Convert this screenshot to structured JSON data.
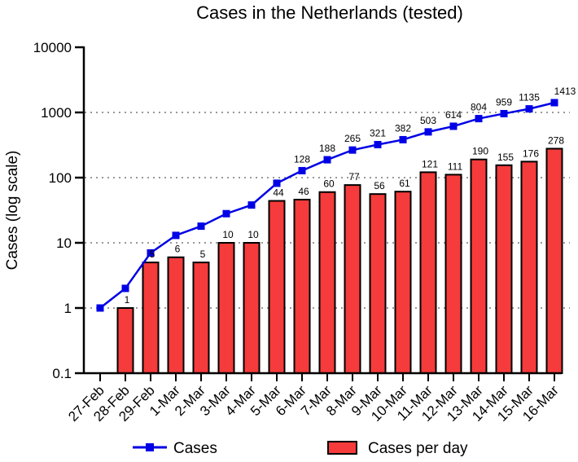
{
  "chart_data": {
    "type": "bar",
    "title": "Cases in the Netherlands (tested)",
    "ylabel": "Cases  (log scale)",
    "xlabel": "",
    "yscale": "log",
    "ylim": [
      0.1,
      10000
    ],
    "yticks": [
      "0.1",
      "1",
      "10",
      "100",
      "1000",
      "10000"
    ],
    "grid": "dotted horizontal at decades",
    "legend": "bottom",
    "categories": [
      "27-Feb",
      "28-Feb",
      "29-Feb",
      "1-Mar",
      "2-Mar",
      "3-Mar",
      "4-Mar",
      "5-Mar",
      "6-Mar",
      "7-Mar",
      "8-Mar",
      "9-Mar",
      "10-Mar",
      "11-Mar",
      "12-Mar",
      "13-Mar",
      "14-Mar",
      "15-Mar",
      "16-Mar"
    ],
    "series": [
      {
        "name": "Cases",
        "kind": "line",
        "color": "#0000e6",
        "values": [
          1,
          2,
          7,
          13,
          18,
          28,
          38,
          82,
          128,
          188,
          265,
          321,
          382,
          503,
          614,
          804,
          959,
          1135,
          1413
        ],
        "labels": [
          "",
          "",
          "",
          "",
          "",
          "",
          "",
          "",
          "128",
          "188",
          "265",
          "321",
          "382",
          "503",
          "614",
          "804",
          "959",
          "1135",
          "1413"
        ]
      },
      {
        "name": "Cases per day",
        "kind": "bar",
        "color": "#f53b3b",
        "values": [
          null,
          1,
          5,
          6,
          5,
          10,
          10,
          44,
          46,
          60,
          77,
          56,
          61,
          121,
          111,
          190,
          155,
          176,
          278
        ],
        "labels": [
          "",
          "1",
          "5",
          "6",
          "5",
          "10",
          "10",
          "44",
          "46",
          "60",
          "77",
          "56",
          "61",
          "121",
          "111",
          "190",
          "155",
          "176",
          "278"
        ]
      }
    ]
  }
}
